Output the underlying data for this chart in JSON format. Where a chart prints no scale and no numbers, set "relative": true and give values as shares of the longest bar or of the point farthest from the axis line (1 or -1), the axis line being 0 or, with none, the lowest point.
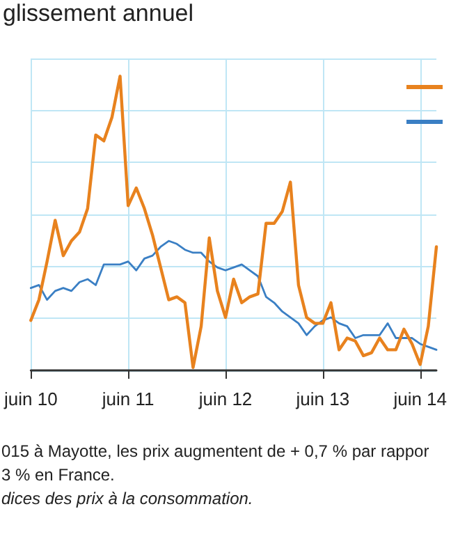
{
  "chart_data": {
    "type": "line",
    "title": "glissement annuel",
    "relative": true,
    "grid": true,
    "marker": "none",
    "line_style": "solid",
    "categories": [
      "juin 10",
      null,
      null,
      null,
      null,
      null,
      null,
      null,
      null,
      null,
      null,
      null,
      "juin 11",
      null,
      null,
      null,
      null,
      null,
      null,
      null,
      null,
      null,
      null,
      null,
      "juin 12",
      null,
      null,
      null,
      null,
      null,
      null,
      null,
      null,
      null,
      null,
      null,
      "juin 13",
      null,
      null,
      null,
      null,
      null,
      null,
      null,
      null,
      null,
      null,
      null,
      "juin 14",
      null,
      null
    ],
    "series": [
      {
        "color": "#e8821e",
        "values": [
          0.17,
          0.24,
          0.37,
          0.51,
          0.39,
          0.44,
          0.47,
          0.55,
          0.8,
          0.78,
          0.86,
          1,
          0.56,
          0.62,
          0.55,
          0.46,
          0.35,
          0.24,
          0.25,
          0.23,
          0.01,
          0.15,
          0.45,
          0.27,
          0.18,
          0.31,
          0.23,
          0.25,
          0.26,
          0.5,
          0.5,
          0.54,
          0.64,
          0.29,
          0.18,
          0.16,
          0.16,
          0.23,
          0.07,
          0.11,
          0.1,
          0.05,
          0.06,
          0.11,
          0.07,
          0.07,
          0.14,
          0.09,
          0.02,
          0.15,
          0.42
        ]
      },
      {
        "color": "#3a7fc4",
        "values": [
          0.28,
          0.29,
          0.24,
          0.27,
          0.28,
          0.27,
          0.3,
          0.31,
          0.29,
          0.36,
          0.36,
          0.36,
          0.37,
          0.34,
          0.38,
          0.39,
          0.42,
          0.44,
          0.43,
          0.41,
          0.4,
          0.4,
          0.37,
          0.35,
          0.34,
          0.35,
          0.36,
          0.34,
          0.32,
          0.25,
          0.23,
          0.2,
          0.18,
          0.16,
          0.12,
          0.15,
          0.17,
          0.18,
          0.16,
          0.15,
          0.11,
          0.12,
          0.12,
          0.12,
          0.16,
          0.11,
          0.11,
          0.11,
          0.09,
          0.08,
          0.07
        ]
      }
    ],
    "annotations": [
      "015 à Mayotte, les prix augmentent de + 0,7 % par rappor",
      "3 % en France.",
      "dices des prix à la consommation."
    ]
  }
}
